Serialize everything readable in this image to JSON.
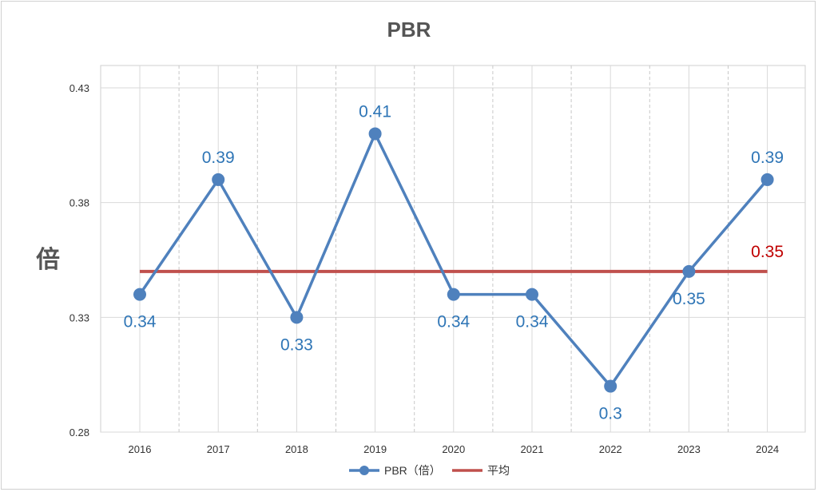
{
  "chart_data": {
    "type": "line",
    "title": "PBR",
    "ylabel": "倍",
    "xlabel": "",
    "categories": [
      "2016",
      "2017",
      "2018",
      "2019",
      "2020",
      "2021",
      "2022",
      "2023",
      "2024"
    ],
    "series": [
      {
        "name": "PBR（倍）",
        "values": [
          0.34,
          0.39,
          0.33,
          0.41,
          0.34,
          0.34,
          0.3,
          0.35,
          0.39
        ],
        "labels": [
          "0.34",
          "0.39",
          "0.33",
          "0.41",
          "0.34",
          "0.34",
          "0.3",
          "0.35",
          "0.39"
        ],
        "color": "#4f81bd",
        "marker": "circle"
      },
      {
        "name": "平均",
        "values": [
          0.35,
          0.35,
          0.35,
          0.35,
          0.35,
          0.35,
          0.35,
          0.35,
          0.35
        ],
        "end_label": "0.35",
        "color": "#c0504d"
      }
    ],
    "ylim": [
      0.28,
      0.43
    ],
    "yticks": [
      "0.28",
      "0.33",
      "0.38",
      "0.43"
    ],
    "grid": true,
    "legend_position": "bottom",
    "colors": {
      "pbr_label": "#2e75b6",
      "avg_label": "#c00000"
    }
  }
}
